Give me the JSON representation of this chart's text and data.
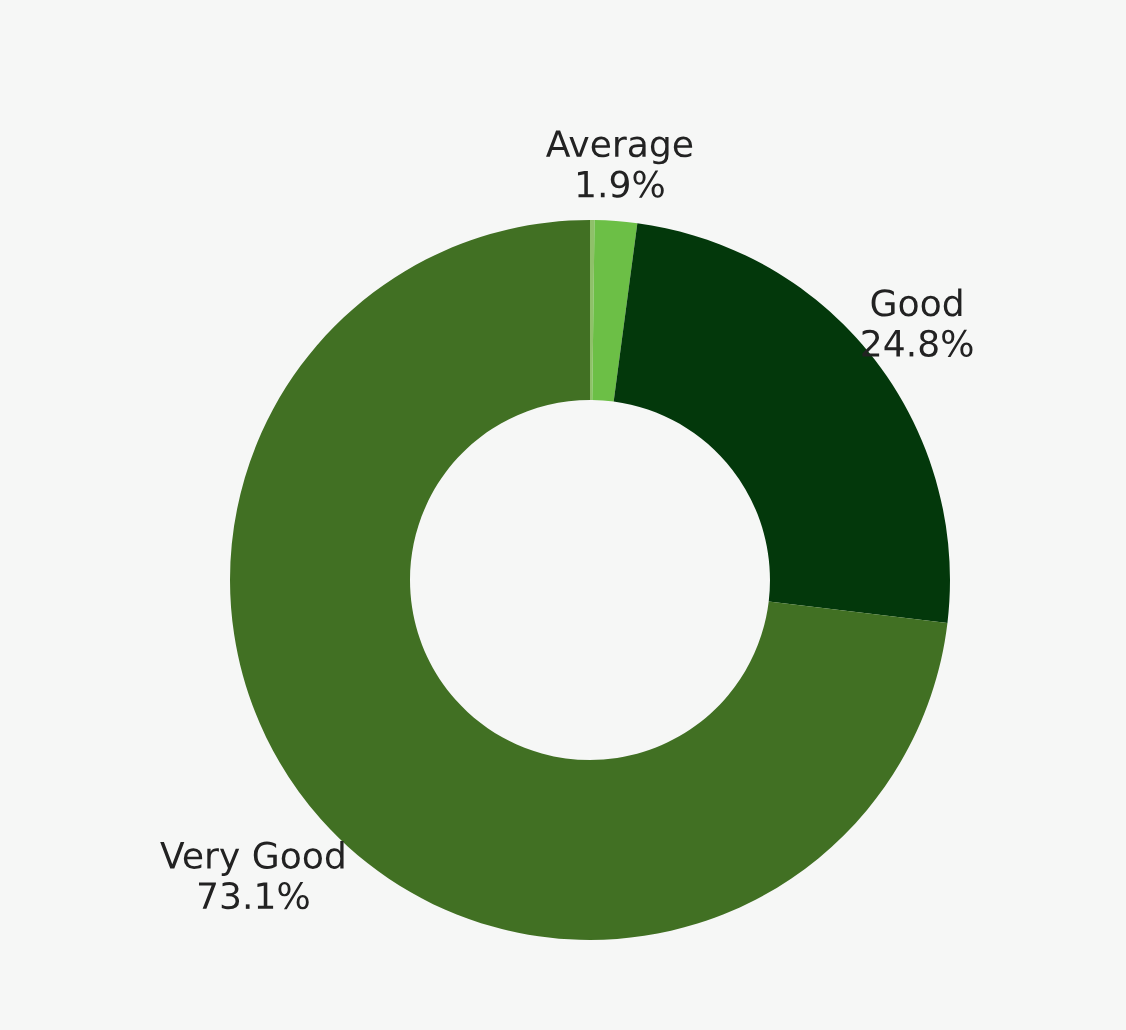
{
  "chart_data": {
    "type": "donut",
    "categories": [
      null,
      "Average",
      "Good",
      "Very Good"
    ],
    "values": [
      0.2,
      1.9,
      24.8,
      73.1
    ],
    "colors": [
      "#8fc06a",
      "#6cbf46",
      "#03380b",
      "#417023"
    ],
    "value_labels": [
      null,
      "1.9%",
      "24.8%",
      "73.1%"
    ]
  }
}
